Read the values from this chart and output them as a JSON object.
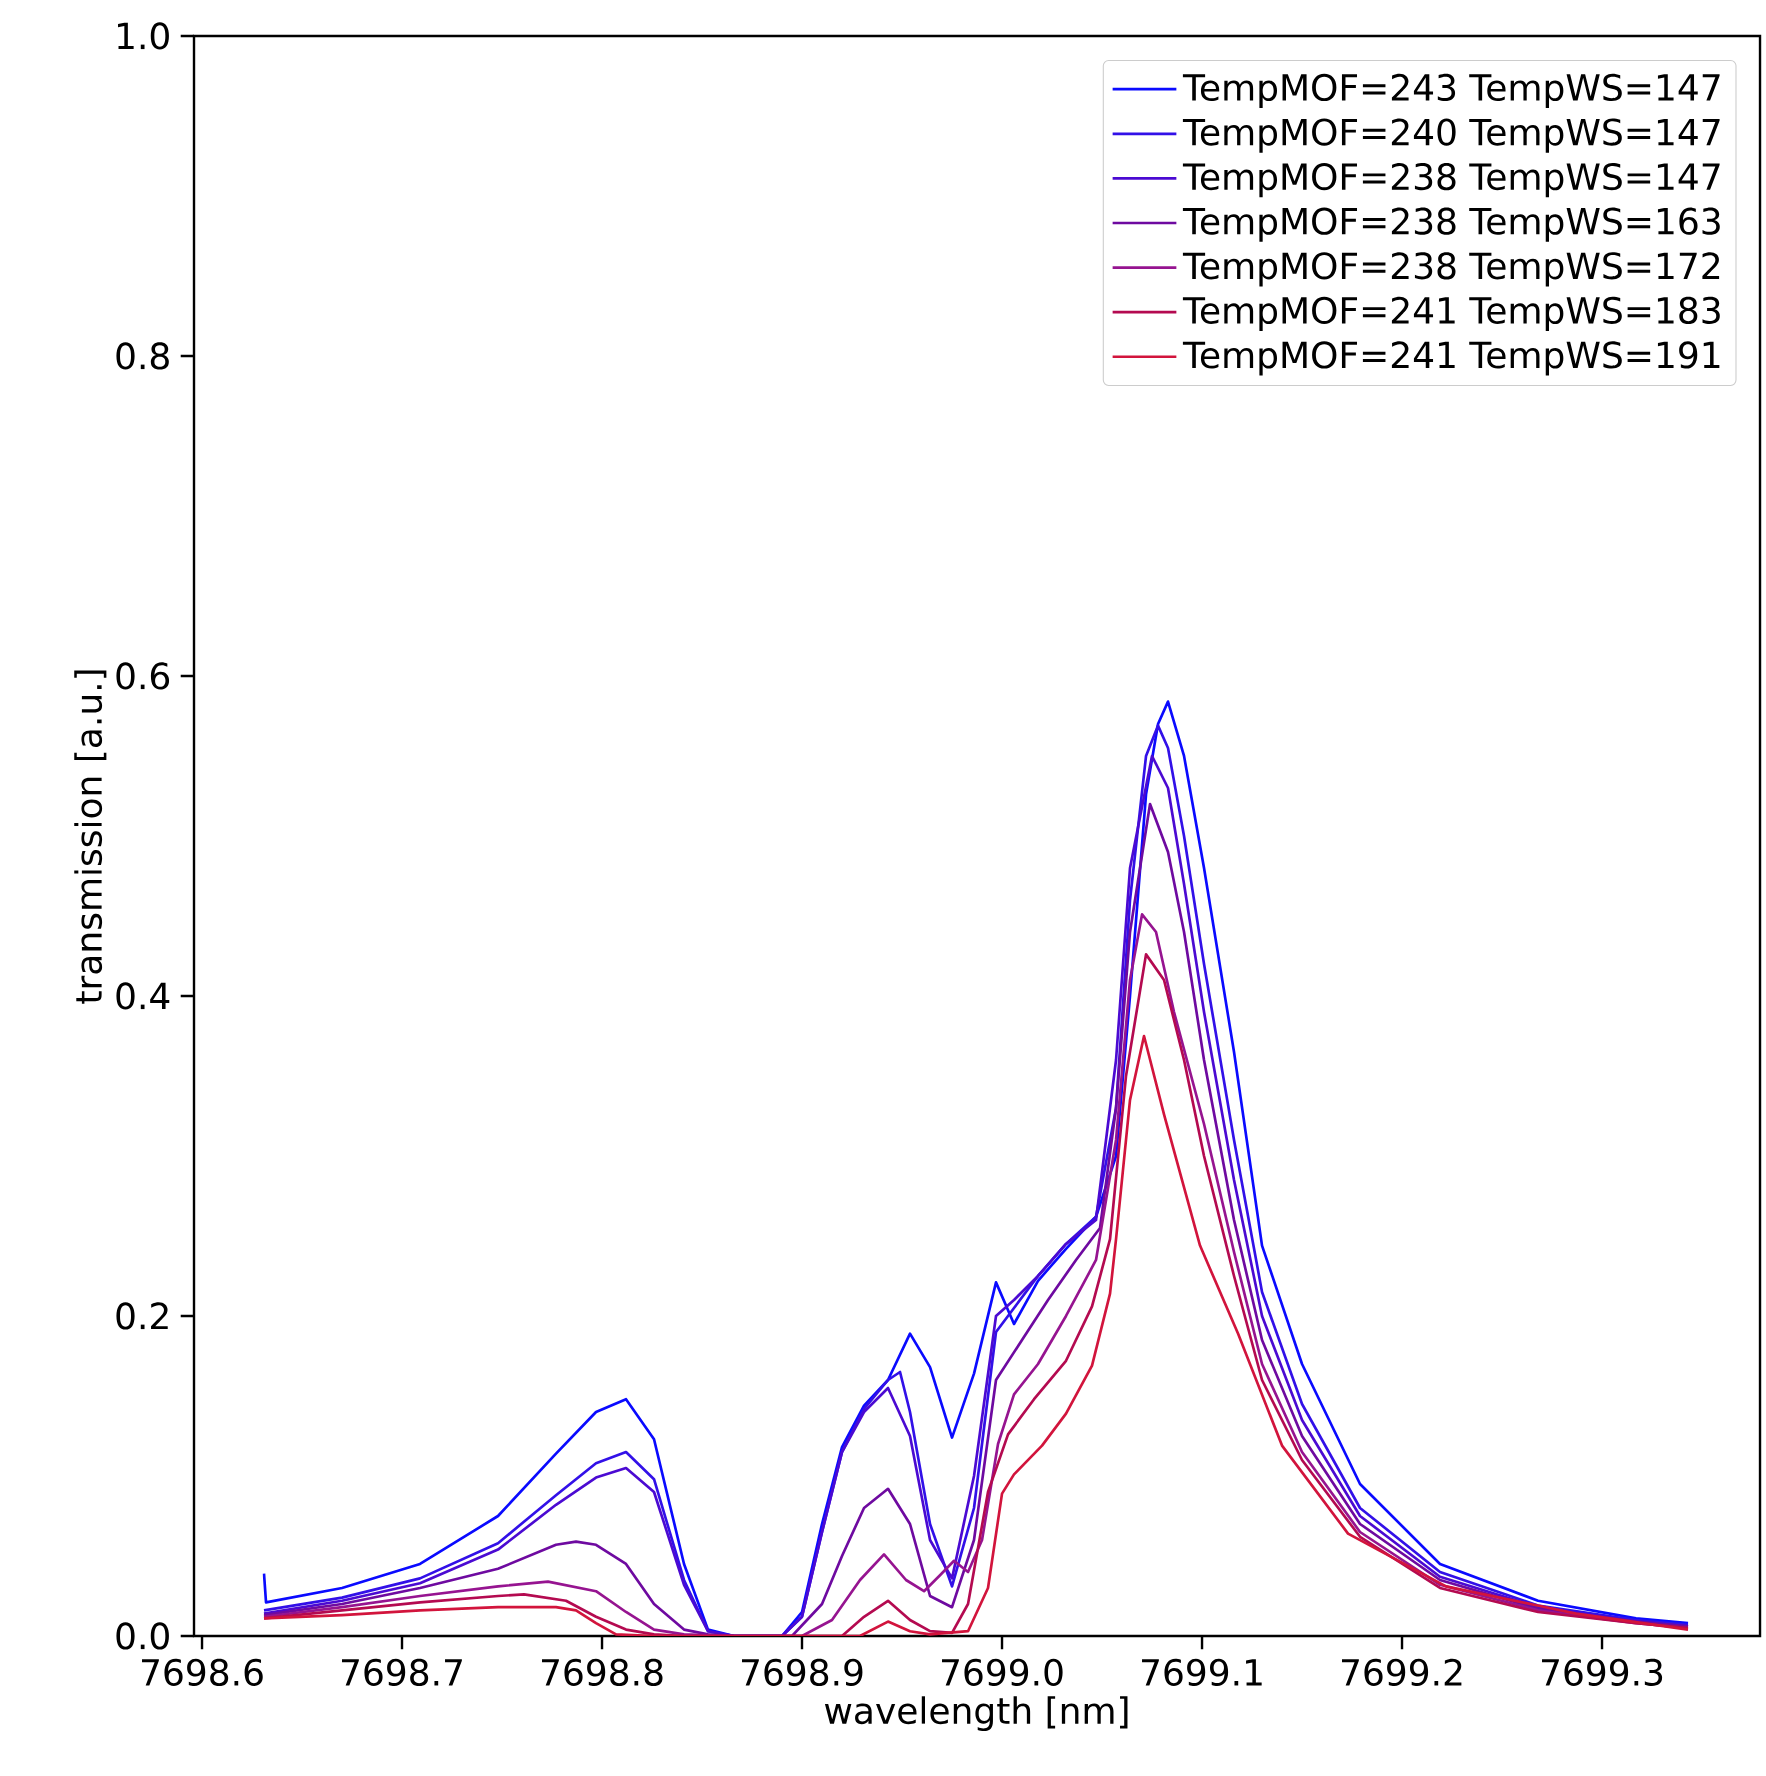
{
  "chart_data": {
    "type": "line",
    "xlabel": "wavelength [nm]",
    "ylabel": "transmission [a.u.]",
    "xlim": [
      7698.596,
      7699.379
    ],
    "ylim": [
      0,
      1
    ],
    "xticks": [
      {
        "value": 7698.6,
        "label": "7698.6"
      },
      {
        "value": 7698.7,
        "label": "7698.7"
      },
      {
        "value": 7698.8,
        "label": "7698.8"
      },
      {
        "value": 7698.9,
        "label": "7698.9"
      },
      {
        "value": 7699.0,
        "label": "7699.0"
      },
      {
        "value": 7699.1,
        "label": "7699.1"
      },
      {
        "value": 7699.2,
        "label": "7699.2"
      },
      {
        "value": 7699.3,
        "label": "7699.3"
      }
    ],
    "yticks": [
      {
        "value": 0,
        "label": "0.0"
      },
      {
        "value": 0.2,
        "label": "0.2"
      },
      {
        "value": 0.4,
        "label": "0.4"
      },
      {
        "value": 0.6,
        "label": "0.6"
      },
      {
        "value": 0.8,
        "label": "0.8"
      },
      {
        "value": 1.0,
        "label": "1.0"
      }
    ],
    "legend": "top right",
    "line_style": "solid",
    "marker": "none",
    "series": [
      {
        "name": "TempMOF=243 TempWS=147",
        "color": "#0a0aff",
        "x": [
          7698.631,
          7698.632,
          7698.67,
          7698.709,
          7698.748,
          7698.777,
          7698.797,
          7698.812,
          7698.826,
          7698.841,
          7698.853,
          7698.866,
          7698.89,
          7698.9,
          7698.91,
          7698.92,
          7698.931,
          7698.943,
          7698.954,
          7698.964,
          7698.975,
          7698.986,
          7698.997,
          7699.006,
          7699.018,
          7699.032,
          7699.047,
          7699.057,
          7699.064,
          7699.072,
          7699.078,
          7699.083,
          7699.091,
          7699.101,
          7699.116,
          7699.13,
          7699.15,
          7699.179,
          7699.219,
          7699.268,
          7699.317,
          7699.343
        ],
        "values": [
          0.039,
          0.021,
          0.03,
          0.045,
          0.075,
          0.114,
          0.14,
          0.148,
          0.123,
          0.045,
          0.004,
          0,
          0,
          0.015,
          0.07,
          0.118,
          0.144,
          0.16,
          0.189,
          0.168,
          0.124,
          0.164,
          0.221,
          0.195,
          0.222,
          0.242,
          0.262,
          0.3,
          0.4,
          0.526,
          0.57,
          0.584,
          0.55,
          0.48,
          0.365,
          0.244,
          0.17,
          0.095,
          0.045,
          0.022,
          0.011,
          0.008
        ]
      },
      {
        "name": "TempMOF=240 TempWS=147",
        "color": "#3210e8",
        "x": [
          7698.631,
          7698.67,
          7698.709,
          7698.748,
          7698.777,
          7698.797,
          7698.812,
          7698.826,
          7698.841,
          7698.853,
          7698.866,
          7698.89,
          7698.9,
          7698.91,
          7698.92,
          7698.931,
          7698.943,
          7698.949,
          7698.954,
          7698.964,
          7698.975,
          7698.986,
          7698.997,
          7699.006,
          7699.018,
          7699.032,
          7699.047,
          7699.057,
          7699.064,
          7699.072,
          7699.078,
          7699.083,
          7699.091,
          7699.101,
          7699.116,
          7699.13,
          7699.15,
          7699.179,
          7699.219,
          7699.268,
          7699.317,
          7699.343
        ],
        "values": [
          0.016,
          0.024,
          0.036,
          0.058,
          0.088,
          0.108,
          0.115,
          0.098,
          0.035,
          0.003,
          0,
          0,
          0.012,
          0.065,
          0.115,
          0.142,
          0.16,
          0.165,
          0.14,
          0.07,
          0.031,
          0.08,
          0.19,
          0.205,
          0.225,
          0.245,
          0.262,
          0.33,
          0.46,
          0.55,
          0.569,
          0.555,
          0.5,
          0.42,
          0.31,
          0.215,
          0.145,
          0.08,
          0.04,
          0.019,
          0.01,
          0.007
        ]
      },
      {
        "name": "TempMOF=238 TempWS=147",
        "color": "#4b0ad2",
        "x": [
          7698.631,
          7698.67,
          7698.709,
          7698.748,
          7698.777,
          7698.797,
          7698.812,
          7698.826,
          7698.841,
          7698.853,
          7698.866,
          7698.89,
          7698.9,
          7698.91,
          7698.92,
          7698.931,
          7698.943,
          7698.954,
          7698.964,
          7698.975,
          7698.986,
          7698.997,
          7699.006,
          7699.018,
          7699.032,
          7699.047,
          7699.057,
          7699.064,
          7699.075,
          7699.083,
          7699.091,
          7699.101,
          7699.116,
          7699.13,
          7699.15,
          7699.179,
          7699.219,
          7699.268,
          7699.317,
          7699.343
        ],
        "values": [
          0.014,
          0.022,
          0.033,
          0.054,
          0.082,
          0.099,
          0.105,
          0.09,
          0.032,
          0.003,
          0,
          0,
          0.012,
          0.065,
          0.115,
          0.14,
          0.155,
          0.125,
          0.06,
          0.036,
          0.1,
          0.2,
          0.21,
          0.225,
          0.245,
          0.26,
          0.36,
          0.48,
          0.55,
          0.53,
          0.47,
          0.39,
          0.285,
          0.2,
          0.135,
          0.075,
          0.037,
          0.018,
          0.009,
          0.006
        ]
      },
      {
        "name": "TempMOF=238 TempWS=163",
        "color": "#6e0aa0",
        "x": [
          7698.631,
          7698.67,
          7698.709,
          7698.748,
          7698.777,
          7698.787,
          7698.797,
          7698.812,
          7698.826,
          7698.841,
          7698.853,
          7698.866,
          7698.895,
          7698.91,
          7698.92,
          7698.931,
          7698.943,
          7698.954,
          7698.964,
          7698.975,
          7698.986,
          7698.997,
          7699.01,
          7699.023,
          7699.037,
          7699.049,
          7699.057,
          7699.064,
          7699.074,
          7699.083,
          7699.091,
          7699.101,
          7699.116,
          7699.13,
          7699.15,
          7699.179,
          7699.219,
          7699.268,
          7699.317,
          7699.343
        ],
        "values": [
          0.013,
          0.02,
          0.03,
          0.042,
          0.057,
          0.059,
          0.057,
          0.045,
          0.02,
          0.004,
          0.001,
          0,
          0,
          0.02,
          0.05,
          0.08,
          0.092,
          0.07,
          0.025,
          0.018,
          0.06,
          0.16,
          0.185,
          0.21,
          0.235,
          0.255,
          0.33,
          0.44,
          0.52,
          0.49,
          0.44,
          0.36,
          0.26,
          0.185,
          0.125,
          0.07,
          0.035,
          0.017,
          0.009,
          0.006
        ]
      },
      {
        "name": "TempMOF=238 TempWS=172",
        "color": "#961490",
        "x": [
          7698.631,
          7698.67,
          7698.709,
          7698.748,
          7698.773,
          7698.797,
          7698.812,
          7698.826,
          7698.841,
          7698.866,
          7698.9,
          7698.915,
          7698.929,
          7698.941,
          7698.952,
          7698.961,
          7698.969,
          7698.976,
          7698.983,
          7698.99,
          7698.998,
          7699.006,
          7699.018,
          7699.032,
          7699.047,
          7699.057,
          7699.064,
          7699.07,
          7699.077,
          7699.086,
          7699.101,
          7699.116,
          7699.13,
          7699.15,
          7699.179,
          7699.219,
          7699.268,
          7699.317,
          7699.343
        ],
        "values": [
          0.012,
          0.018,
          0.025,
          0.031,
          0.034,
          0.028,
          0.015,
          0.004,
          0.001,
          0,
          0,
          0.01,
          0.035,
          0.051,
          0.035,
          0.028,
          0.038,
          0.047,
          0.04,
          0.06,
          0.12,
          0.151,
          0.17,
          0.2,
          0.235,
          0.31,
          0.41,
          0.451,
          0.44,
          0.39,
          0.32,
          0.24,
          0.17,
          0.115,
          0.065,
          0.032,
          0.016,
          0.008,
          0.005
        ]
      },
      {
        "name": "TempMOF=241 TempWS=183",
        "color": "#b40a50",
        "x": [
          7698.631,
          7698.67,
          7698.709,
          7698.748,
          7698.761,
          7698.782,
          7698.797,
          7698.812,
          7698.826,
          7698.841,
          7698.92,
          7698.931,
          7698.943,
          7698.954,
          7698.964,
          7698.975,
          7698.983,
          7698.993,
          7699.003,
          7699.016,
          7699.032,
          7699.045,
          7699.054,
          7699.062,
          7699.072,
          7699.081,
          7699.091,
          7699.101,
          7699.116,
          7699.13,
          7699.15,
          7699.179,
          7699.219,
          7699.268,
          7699.317,
          7699.343
        ],
        "values": [
          0.011,
          0.016,
          0.021,
          0.025,
          0.026,
          0.022,
          0.012,
          0.004,
          0.001,
          0,
          0,
          0.012,
          0.022,
          0.01,
          0.003,
          0.002,
          0.02,
          0.09,
          0.126,
          0.148,
          0.172,
          0.206,
          0.248,
          0.35,
          0.426,
          0.41,
          0.36,
          0.3,
          0.225,
          0.16,
          0.11,
          0.062,
          0.03,
          0.015,
          0.008,
          0.005
        ]
      },
      {
        "name": "TempMOF=241 TempWS=191",
        "color": "#d2143c",
        "x": [
          7698.631,
          7698.67,
          7698.709,
          7698.748,
          7698.777,
          7698.787,
          7698.797,
          7698.807,
          7698.826,
          7698.929,
          7698.943,
          7698.954,
          7698.964,
          7698.983,
          7698.993,
          7699.0,
          7699.006,
          7699.02,
          7699.032,
          7699.045,
          7699.054,
          7699.057,
          7699.064,
          7699.071,
          7699.081,
          7699.099,
          7699.118,
          7699.14,
          7699.173,
          7699.222,
          7699.287,
          7699.343
        ],
        "values": [
          0.011,
          0.013,
          0.016,
          0.018,
          0.018,
          0.016,
          0.008,
          0.001,
          0,
          0,
          0.009,
          0.003,
          0.001,
          0.003,
          0.03,
          0.089,
          0.101,
          0.119,
          0.139,
          0.169,
          0.214,
          0.248,
          0.335,
          0.375,
          0.326,
          0.244,
          0.189,
          0.119,
          0.064,
          0.031,
          0.014,
          0.004
        ]
      }
    ]
  }
}
